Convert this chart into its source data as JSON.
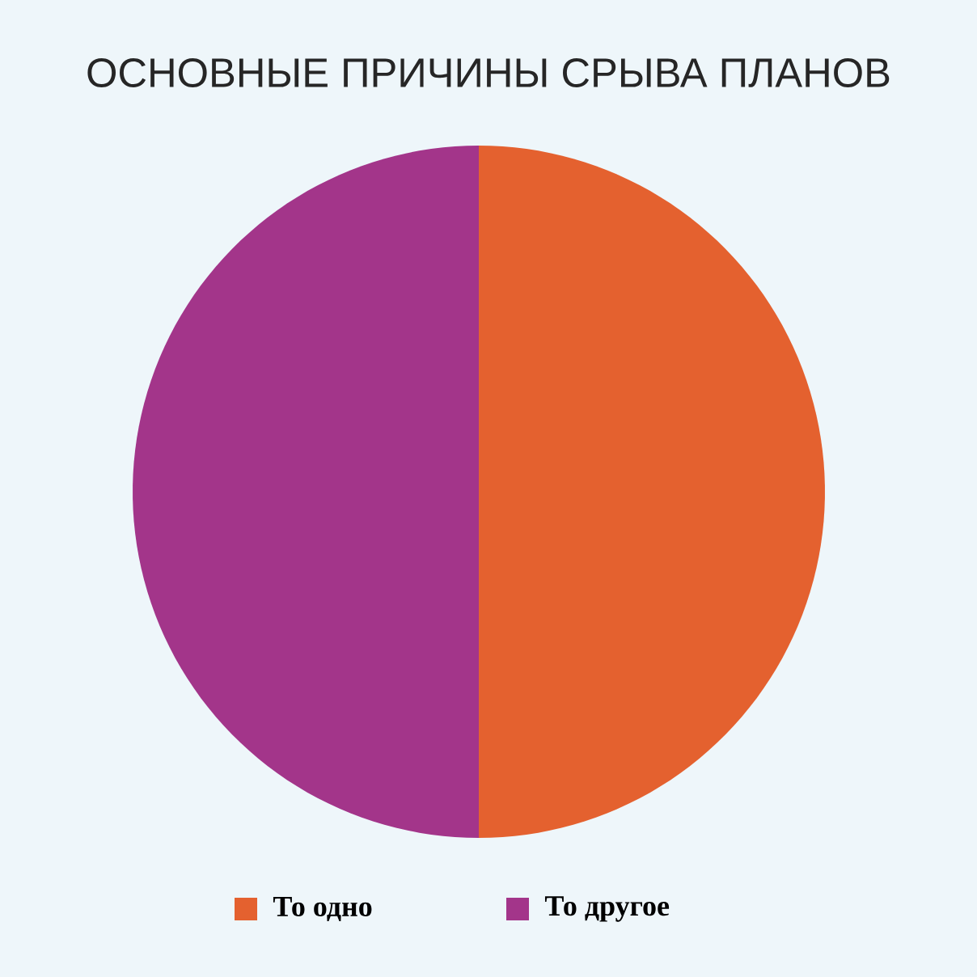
{
  "chart_data": {
    "type": "pie",
    "title": "ОСНОВНЫЕ ПРИЧИНЫ СРЫВА ПЛАНОВ",
    "categories": [
      "То одно",
      "То другое"
    ],
    "values": [
      50,
      50
    ],
    "colors": [
      "#e4612f",
      "#a3358a"
    ],
    "legend": "bottom"
  }
}
